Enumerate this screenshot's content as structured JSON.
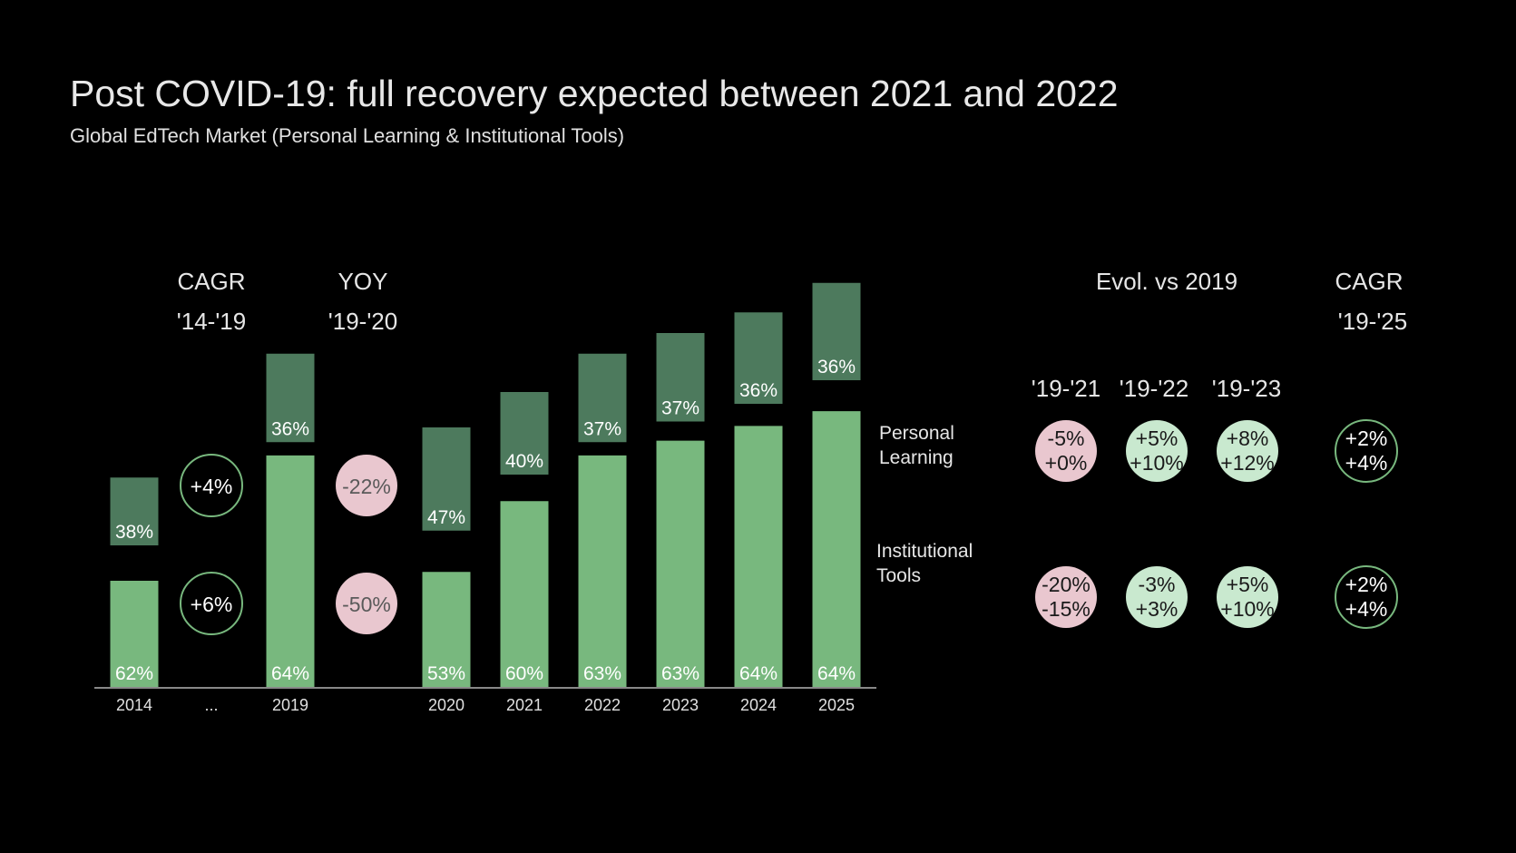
{
  "title": "Post COVID-19: full recovery expected between 2021 and 2022",
  "subtitle": "Global EdTech Market (Personal Learning & Institutional Tools)",
  "colors": {
    "personal": "#4d7a5d",
    "institutional": "#78b87e",
    "positive_fill": "#c9e9cf",
    "negative_fill": "#e9c7cf",
    "outline": "#78b87e",
    "axis": "#888888"
  },
  "left_headers": [
    {
      "line1": "CAGR",
      "line2": "'14-'19"
    },
    {
      "line1": "YOY",
      "line2": "'19-'20"
    }
  ],
  "right_headers": {
    "evol": "Evol. vs 2019",
    "evol_periods": [
      "'19-'21",
      "'19-'22",
      "'19-'23"
    ],
    "cagr": "CAGR",
    "cagr_period": "'19-'25"
  },
  "legend": {
    "personal": [
      "Personal",
      "Learning"
    ],
    "institutional": [
      "Institutional",
      "Tools"
    ]
  },
  "chart_data": {
    "type": "bar",
    "categories": [
      "2014",
      "...",
      "2019",
      "2020",
      "2021",
      "2022",
      "2023",
      "2024",
      "2025"
    ],
    "series": [
      {
        "name": "Personal Learning",
        "values": [
          38,
          null,
          36,
          47,
          40,
          37,
          37,
          36,
          36
        ],
        "labels": [
          "38%",
          "",
          "36%",
          "47%",
          "40%",
          "37%",
          "37%",
          "36%",
          "36%"
        ]
      },
      {
        "name": "Institutional Tools",
        "values": [
          62,
          null,
          64,
          53,
          60,
          63,
          63,
          64,
          64
        ],
        "labels": [
          "62%",
          "",
          "64%",
          "53%",
          "60%",
          "63%",
          "63%",
          "64%",
          "64%"
        ]
      }
    ],
    "bar_layout_relative": [
      {
        "inst": [
          0.36,
          0
        ],
        "pers": [
          0.71,
          0.48
        ]
      },
      null,
      {
        "inst": [
          0.785,
          0
        ],
        "pers": [
          1.13,
          0.83
        ]
      },
      {
        "inst": [
          0.39,
          0
        ],
        "pers": [
          0.88,
          0.53
        ]
      },
      {
        "inst": [
          0.63,
          0
        ],
        "pers": [
          1.0,
          0.72
        ]
      },
      {
        "inst": [
          0.785,
          0
        ],
        "pers": [
          1.13,
          0.83
        ]
      },
      {
        "inst": [
          0.835,
          0
        ],
        "pers": [
          1.2,
          0.9
        ]
      },
      {
        "inst": [
          0.885,
          0
        ],
        "pers": [
          1.27,
          0.96
        ]
      },
      {
        "inst": [
          0.935,
          0
        ],
        "pers": [
          1.37,
          1.04
        ]
      }
    ],
    "left_growth": [
      {
        "personal": "+4%",
        "institutional": "+6%",
        "style": "outline"
      },
      {
        "personal": "-22%",
        "institutional": "-50%",
        "style": "negative"
      }
    ],
    "evol_vs_2019": [
      {
        "personal": [
          "-5%",
          "+0%"
        ],
        "institutional": [
          "-20%",
          "-15%"
        ],
        "style": "negative"
      },
      {
        "personal": [
          "+5%",
          "+10%"
        ],
        "institutional": [
          "-3%",
          "+3%"
        ],
        "style": "positive"
      },
      {
        "personal": [
          "+8%",
          "+12%"
        ],
        "institutional": [
          "+5%",
          "+10%"
        ],
        "style": "positive"
      }
    ],
    "cagr_19_25": {
      "personal": [
        "+2%",
        "+4%"
      ],
      "institutional": [
        "+2%",
        "+4%"
      ],
      "style": "outline"
    }
  }
}
